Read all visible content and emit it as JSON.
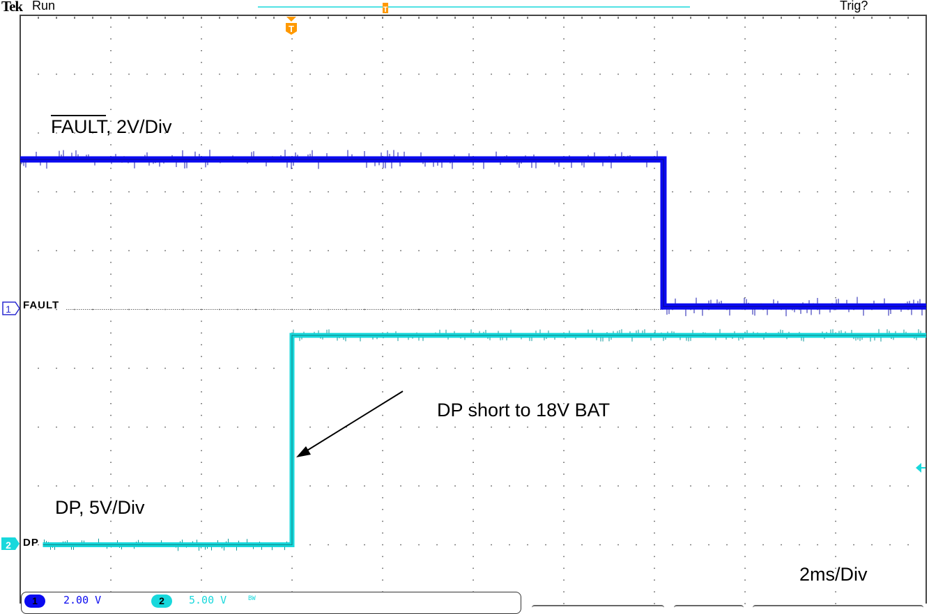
{
  "header": {
    "brand": "Tek",
    "state": "Run",
    "trigger_status": "Trig?"
  },
  "annotations": {
    "fault_label": "FAULT",
    "fault_scale": ", 2V/Div",
    "dp_label": "DP, 5V/Div",
    "event": "DP short to 18V BAT",
    "timebase": "2ms/Div"
  },
  "channels": [
    {
      "number": "1",
      "marker_label": "FAULT",
      "scale": "2.00 V",
      "color": "#0a0af0"
    },
    {
      "number": "2",
      "marker_label": "DP",
      "scale": "5.00 V",
      "bandwidth_limit": "BW",
      "color": "#18d8dc"
    }
  ],
  "colors": {
    "trigger_marker": "#ff9900",
    "grid": "#666666"
  },
  "chart_data": {
    "type": "line",
    "xlabel": "",
    "ylabel": "",
    "x_unit": "ms",
    "x_per_div": 2,
    "x_divisions": 10,
    "xlim": [
      -6,
      14
    ],
    "y_divisions": 10,
    "grid": true,
    "trigger_time": 0,
    "series": [
      {
        "name": "FAULT, 2V/Div",
        "channel": "1",
        "volts_per_div": 2,
        "ground_div": 0,
        "x": [
          -6,
          8.2,
          8.2,
          14
        ],
        "y": [
          5.1,
          5.1,
          0.1,
          0.1
        ]
      },
      {
        "name": "DP, 5V/Div",
        "channel": "2",
        "volts_per_div": 5,
        "ground_div": -4,
        "x": [
          -5.5,
          0,
          0,
          14
        ],
        "y": [
          0,
          0,
          17.8,
          17.8
        ]
      }
    ]
  }
}
